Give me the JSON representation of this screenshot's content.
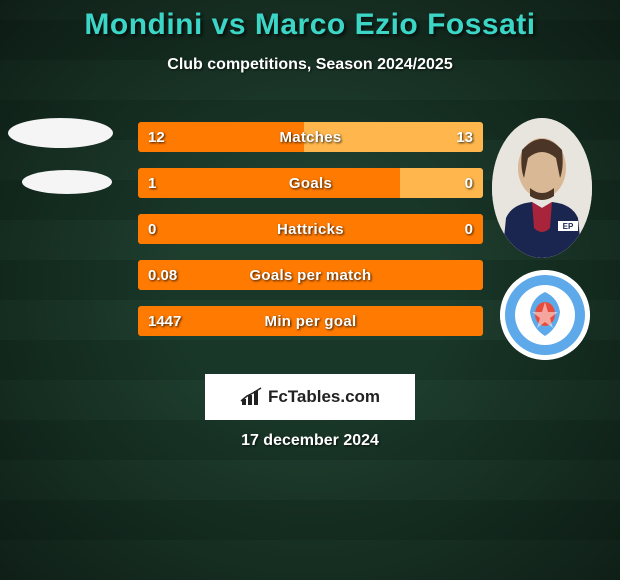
{
  "title": "Mondini vs Marco Ezio Fossati",
  "subtitle": "Club competitions, Season 2024/2025",
  "date": "17 december 2024",
  "branding_text": "FcTables.com",
  "colors": {
    "title": "#3bd6c6",
    "accent_left": "#ff7a00",
    "accent_right": "#ffb74d",
    "background": "#1a3a2a",
    "text": "#ffffff",
    "branding_bg": "#ffffff",
    "branding_text": "#222222"
  },
  "stats": [
    {
      "label": "Matches",
      "left_val": "12",
      "right_val": "13",
      "left_num": 12,
      "right_num": 13,
      "left_pct": 48,
      "right_pct": 52,
      "left_color": "#ff7a00",
      "right_color": "#ffb74d"
    },
    {
      "label": "Goals",
      "left_val": "1",
      "right_val": "0",
      "left_num": 1,
      "right_num": 0,
      "left_pct": 76,
      "right_pct": 24,
      "left_color": "#ff7a00",
      "right_color": "#ffb74d"
    },
    {
      "label": "Hattricks",
      "left_val": "0",
      "right_val": "0",
      "left_num": 0,
      "right_num": 0,
      "left_pct": 100,
      "right_pct": 0,
      "left_color": "#ff7a00",
      "right_color": "#ffb74d"
    },
    {
      "label": "Goals per match",
      "left_val": "0.08",
      "right_val": "",
      "left_num": 0.08,
      "right_num": 0,
      "left_pct": 100,
      "right_pct": 0,
      "left_color": "#ff7a00",
      "right_color": "#ffb74d"
    },
    {
      "label": "Min per goal",
      "left_val": "1447",
      "right_val": "",
      "left_num": 1447,
      "right_num": 0,
      "left_pct": 100,
      "right_pct": 0,
      "left_color": "#ff7a00",
      "right_color": "#ffb74d"
    }
  ],
  "player_left": {
    "name": "Mondini",
    "has_photo": false
  },
  "player_right": {
    "name": "Marco Ezio Fossati",
    "has_photo": true,
    "club_badge_colors": {
      "ring": "#5da9e9",
      "inner": "#ffffff",
      "accent": "#e84c3d"
    }
  }
}
